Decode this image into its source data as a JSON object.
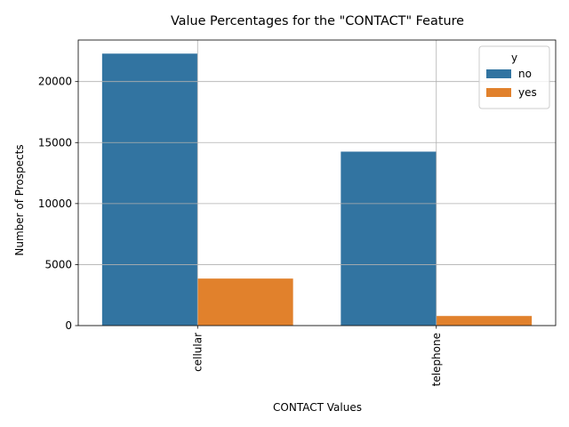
{
  "chart_data": {
    "type": "bar",
    "title": "Value Percentages for the \"CONTACT\" Feature",
    "xlabel": "CONTACT Values",
    "ylabel": "Number of Prospects",
    "categories": [
      "cellular",
      "telephone"
    ],
    "series": [
      {
        "name": "no",
        "values": [
          22291,
          14257
        ],
        "color": "#3274a1"
      },
      {
        "name": "yes",
        "values": [
          3853,
          787
        ],
        "color": "#e1812c"
      }
    ],
    "ylim": [
      0,
      23405
    ],
    "yticks": [
      0,
      5000,
      10000,
      15000,
      20000
    ],
    "grid": true,
    "legend": {
      "title": "y",
      "placement": "top-right"
    }
  }
}
